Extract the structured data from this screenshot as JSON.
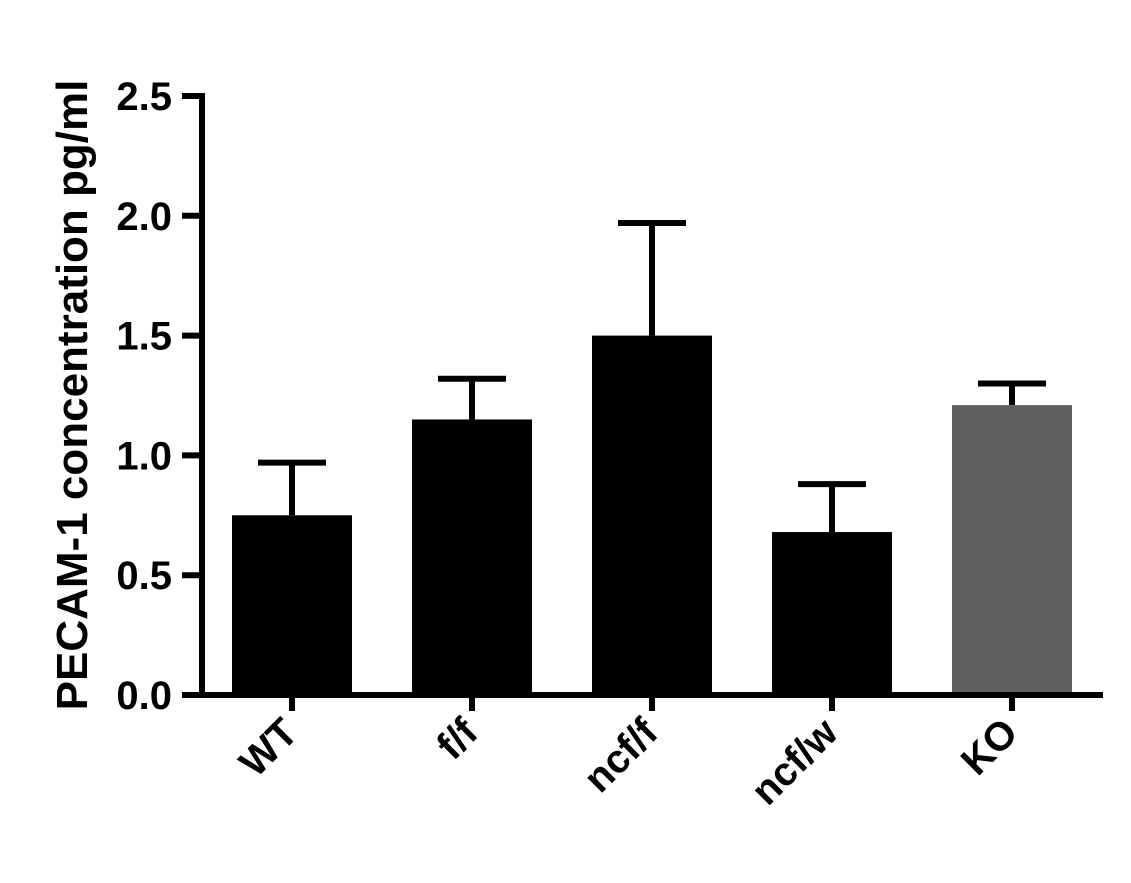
{
  "chart_data": {
    "type": "bar",
    "title": "",
    "xlabel": "",
    "ylabel": "PECAM-1 concentration pg/ml",
    "categories": [
      "WT",
      "f/f",
      "ncf/f",
      "ncf/w",
      "KO"
    ],
    "values": [
      0.75,
      1.15,
      1.5,
      0.68,
      1.21
    ],
    "error_upper": [
      0.97,
      1.32,
      1.97,
      0.88,
      1.3
    ],
    "bar_colors": [
      "#000000",
      "#000000",
      "#000000",
      "#000000",
      "#606060"
    ],
    "ylim": [
      0,
      2.5
    ],
    "yticks": [
      "0.0",
      "0.5",
      "1.0",
      "1.5",
      "2.0",
      "2.5"
    ],
    "ytick_values": [
      0,
      0.5,
      1.0,
      1.5,
      2.0,
      2.5
    ],
    "grid": false,
    "legend": false
  }
}
